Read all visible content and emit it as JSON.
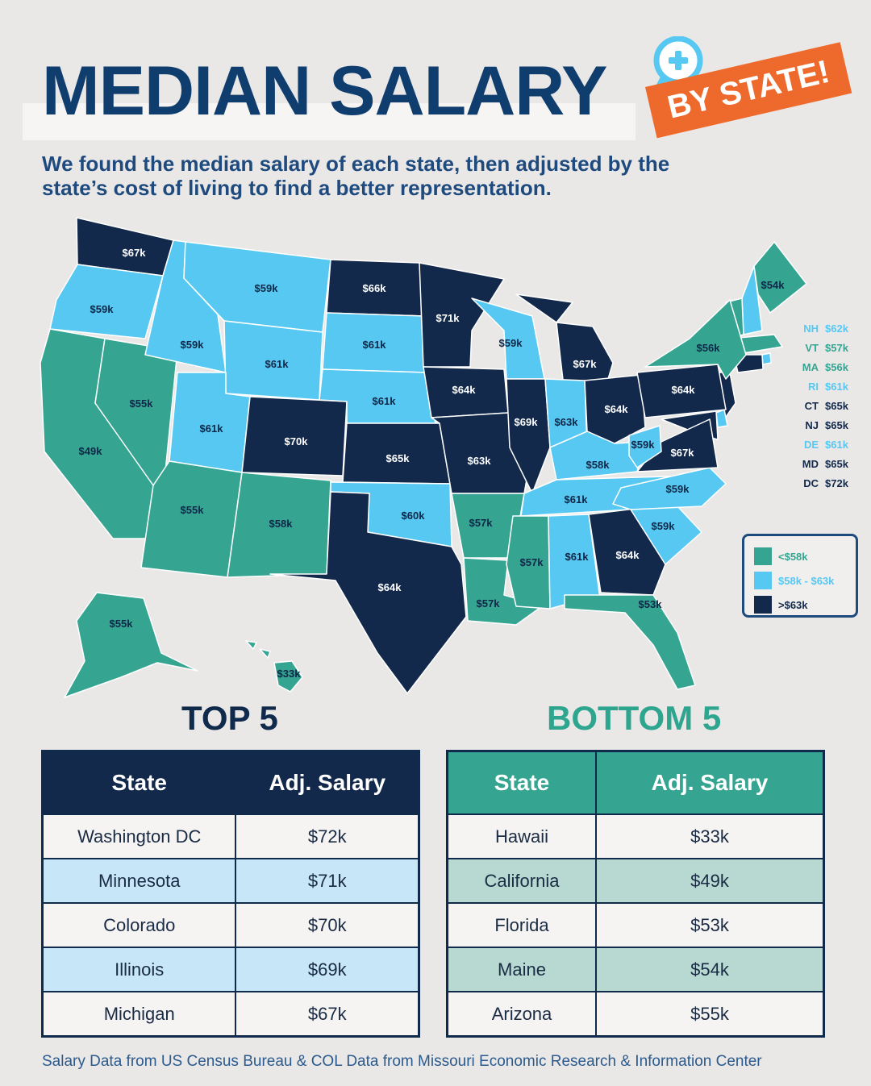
{
  "header": {
    "title": "MEDIAN SALARY",
    "badge": "BY STATE!",
    "badge_icon": "plus-chat-bubble-icon",
    "subtitle": "We found the median salary of each state, then adjusted by the state’s cost of living to find a better representation."
  },
  "colors": {
    "low": "#35a592",
    "mid": "#57c8f1",
    "high": "#13294b",
    "accent": "#ee6a2c",
    "title": "#0f3d6e"
  },
  "map": {
    "states": [
      {
        "code": "WA",
        "label": "$67k",
        "tier": "high"
      },
      {
        "code": "OR",
        "label": "$59k",
        "tier": "mid"
      },
      {
        "code": "CA",
        "label": "$49k",
        "tier": "low"
      },
      {
        "code": "NV",
        "label": "$55k",
        "tier": "low"
      },
      {
        "code": "ID",
        "label": "$59k",
        "tier": "mid"
      },
      {
        "code": "MT",
        "label": "$59k",
        "tier": "mid"
      },
      {
        "code": "WY",
        "label": "$61k",
        "tier": "mid"
      },
      {
        "code": "UT",
        "label": "$61k",
        "tier": "mid"
      },
      {
        "code": "AZ",
        "label": "$55k",
        "tier": "low"
      },
      {
        "code": "CO",
        "label": "$70k",
        "tier": "high"
      },
      {
        "code": "NM",
        "label": "$58k",
        "tier": "low"
      },
      {
        "code": "ND",
        "label": "$66k",
        "tier": "high"
      },
      {
        "code": "SD",
        "label": "$61k",
        "tier": "mid"
      },
      {
        "code": "NE",
        "label": "$61k",
        "tier": "mid"
      },
      {
        "code": "KS",
        "label": "$65k",
        "tier": "high"
      },
      {
        "code": "OK",
        "label": "$60k",
        "tier": "mid"
      },
      {
        "code": "TX",
        "label": "$64k",
        "tier": "high"
      },
      {
        "code": "MN",
        "label": "$71k",
        "tier": "high"
      },
      {
        "code": "IA",
        "label": "$64k",
        "tier": "high"
      },
      {
        "code": "MO",
        "label": "$63k",
        "tier": "high"
      },
      {
        "code": "AR",
        "label": "$57k",
        "tier": "low"
      },
      {
        "code": "LA",
        "label": "$57k",
        "tier": "low"
      },
      {
        "code": "WI",
        "label": "$59k",
        "tier": "mid"
      },
      {
        "code": "IL",
        "label": "$69k",
        "tier": "high"
      },
      {
        "code": "MI",
        "label": "$67k",
        "tier": "high"
      },
      {
        "code": "IN",
        "label": "$63k",
        "tier": "mid"
      },
      {
        "code": "OH",
        "label": "$64k",
        "tier": "high"
      },
      {
        "code": "KY",
        "label": "$58k",
        "tier": "mid"
      },
      {
        "code": "TN",
        "label": "$61k",
        "tier": "mid"
      },
      {
        "code": "MS",
        "label": "$57k",
        "tier": "low"
      },
      {
        "code": "AL",
        "label": "$61k",
        "tier": "mid"
      },
      {
        "code": "GA",
        "label": "$64k",
        "tier": "high"
      },
      {
        "code": "FL",
        "label": "$53k",
        "tier": "low"
      },
      {
        "code": "SC",
        "label": "$59k",
        "tier": "mid"
      },
      {
        "code": "NC",
        "label": "$59k",
        "tier": "mid"
      },
      {
        "code": "VA",
        "label": "$67k",
        "tier": "high"
      },
      {
        "code": "WV",
        "label": "$59k",
        "tier": "mid"
      },
      {
        "code": "PA",
        "label": "$64k",
        "tier": "high"
      },
      {
        "code": "NY",
        "label": "$56k",
        "tier": "low"
      },
      {
        "code": "ME",
        "label": "$54k",
        "tier": "low"
      },
      {
        "code": "AK",
        "label": "$55k",
        "tier": "low"
      },
      {
        "code": "HI",
        "label": "$33k",
        "tier": "low"
      }
    ],
    "small_states": [
      {
        "abbr": "NH",
        "value": "$62k",
        "tier": "mid"
      },
      {
        "abbr": "VT",
        "value": "$57k",
        "tier": "low"
      },
      {
        "abbr": "MA",
        "value": "$56k",
        "tier": "low"
      },
      {
        "abbr": "RI",
        "value": "$61k",
        "tier": "mid"
      },
      {
        "abbr": "CT",
        "value": "$65k",
        "tier": "high"
      },
      {
        "abbr": "NJ",
        "value": "$65k",
        "tier": "high"
      },
      {
        "abbr": "DE",
        "value": "$61k",
        "tier": "mid"
      },
      {
        "abbr": "MD",
        "value": "$65k",
        "tier": "high"
      },
      {
        "abbr": "DC",
        "value": "$72k",
        "tier": "high"
      }
    ]
  },
  "legend": [
    {
      "label": "<$58k",
      "tier": "low"
    },
    {
      "label": "$58k - $63k",
      "tier": "mid"
    },
    {
      "label": ">$63k",
      "tier": "high"
    }
  ],
  "top5": {
    "title": "TOP 5",
    "headers": [
      "State",
      "Adj. Salary"
    ],
    "rows": [
      [
        "Washington DC",
        "$72k"
      ],
      [
        "Minnesota",
        "$71k"
      ],
      [
        "Colorado",
        "$70k"
      ],
      [
        "Illinois",
        "$69k"
      ],
      [
        "Michigan",
        "$67k"
      ]
    ]
  },
  "bottom5": {
    "title": "BOTTOM 5",
    "headers": [
      "State",
      "Adj. Salary"
    ],
    "rows": [
      [
        "Hawaii",
        "$33k"
      ],
      [
        "California",
        "$49k"
      ],
      [
        "Florida",
        "$53k"
      ],
      [
        "Maine",
        "$54k"
      ],
      [
        "Arizona",
        "$55k"
      ]
    ]
  },
  "footer": {
    "source": "Salary Data from US Census Bureau & COL Data from Missouri Economic Research & Information Center"
  }
}
